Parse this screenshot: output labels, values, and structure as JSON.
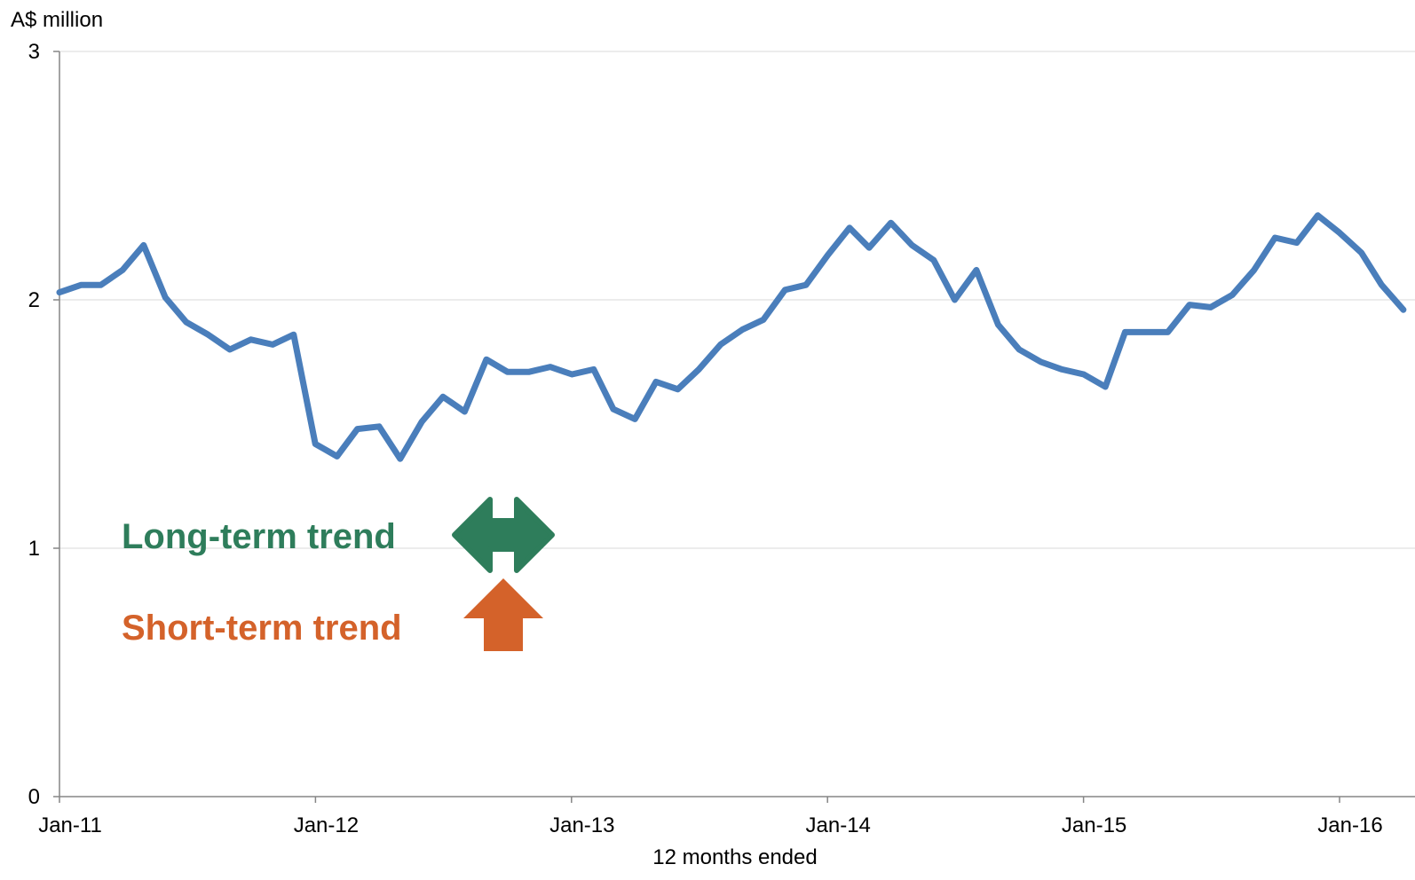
{
  "chart_data": {
    "type": "line",
    "ylabel": "A$ million",
    "xlabel": "12 months ended",
    "ylim": [
      0,
      3
    ],
    "yticks": [
      "0",
      "1",
      "2",
      "3"
    ],
    "xticks": [
      "Jan-11",
      "Jan-12",
      "Jan-13",
      "Jan-14",
      "Jan-15",
      "Jan-16"
    ],
    "grid": "horizontal",
    "colors": {
      "line": "#4a7ebb",
      "long_term": "#2e7d5b",
      "short_term": "#d4622a"
    },
    "series": [
      {
        "x": [
          "2011-01",
          "2011-02",
          "2011-03",
          "2011-04",
          "2011-05",
          "2011-06",
          "2011-07",
          "2011-08",
          "2011-09",
          "2011-10",
          "2011-11",
          "2011-12",
          "2012-01",
          "2012-02",
          "2012-03",
          "2012-04",
          "2012-05",
          "2012-06",
          "2012-07",
          "2012-08",
          "2012-09",
          "2012-10",
          "2012-11",
          "2012-12",
          "2013-01",
          "2013-02",
          "2013-03",
          "2013-04",
          "2013-05",
          "2013-06",
          "2013-07",
          "2013-08",
          "2013-09",
          "2013-10",
          "2013-11",
          "2013-12",
          "2014-01",
          "2014-02",
          "2014-03",
          "2014-04",
          "2014-05",
          "2014-06",
          "2014-07",
          "2014-08",
          "2014-09",
          "2014-10",
          "2014-11",
          "2014-12",
          "2015-01",
          "2015-02",
          "2015-03",
          "2015-04",
          "2015-05",
          "2015-06",
          "2015-07",
          "2015-08",
          "2015-09",
          "2015-10",
          "2015-11",
          "2015-12",
          "2016-01",
          "2016-02",
          "2016-03",
          "2016-04"
        ],
        "values": [
          2.03,
          2.06,
          2.06,
          2.12,
          2.22,
          2.01,
          1.91,
          1.86,
          1.8,
          1.84,
          1.82,
          1.86,
          1.42,
          1.37,
          1.48,
          1.49,
          1.36,
          1.51,
          1.61,
          1.55,
          1.76,
          1.71,
          1.71,
          1.73,
          1.7,
          1.72,
          1.56,
          1.52,
          1.67,
          1.64,
          1.72,
          1.82,
          1.88,
          1.92,
          2.04,
          2.06,
          2.18,
          2.29,
          2.21,
          2.31,
          2.22,
          2.16,
          2.0,
          2.12,
          1.9,
          1.8,
          1.75,
          1.72,
          1.7,
          1.65,
          1.87,
          1.87,
          1.87,
          1.98,
          1.97,
          2.02,
          2.12,
          2.25,
          2.23,
          2.34,
          2.27,
          2.19,
          2.06,
          1.96
        ]
      }
    ],
    "annotations": {
      "long_term_label": "Long-term trend",
      "long_term_icon": "left-right-arrow-icon",
      "short_term_label": "Short-term trend",
      "short_term_icon": "up-arrow-icon"
    }
  }
}
